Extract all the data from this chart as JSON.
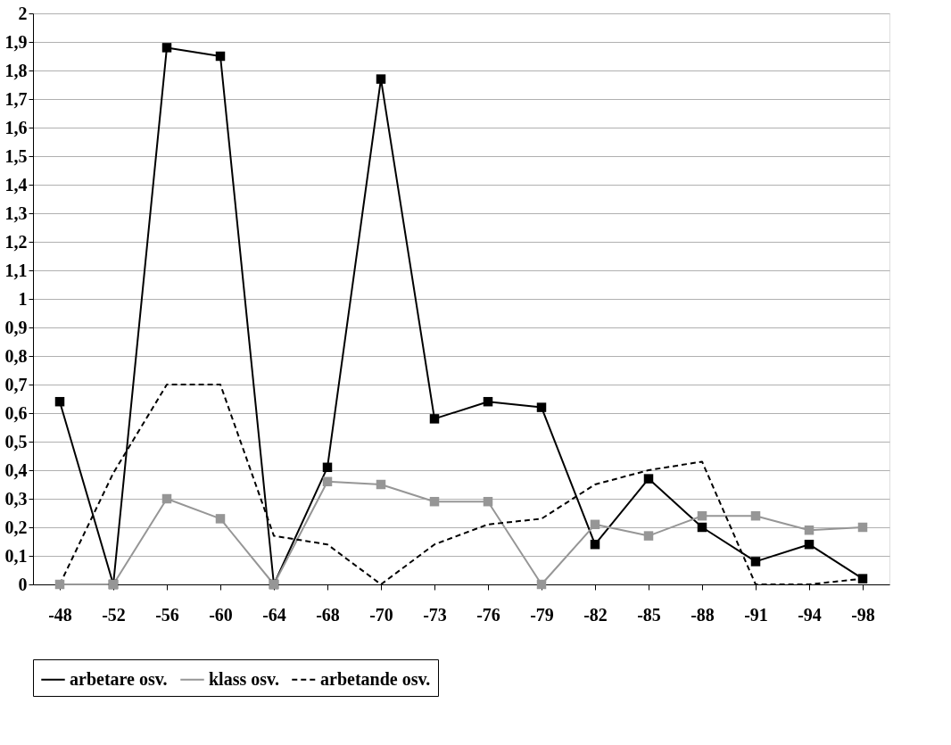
{
  "chart_data": {
    "type": "line",
    "categories": [
      "-48",
      "-52",
      "-56",
      "-60",
      "-64",
      "-68",
      "-70",
      "-73",
      "-76",
      "-79",
      "-82",
      "-85",
      "-88",
      "-91",
      "-94",
      "-98"
    ],
    "series": [
      {
        "name": "arbetare osv.",
        "color": "#000000",
        "marker": "square",
        "line_style": "solid",
        "values": [
          0.64,
          0,
          1.88,
          1.85,
          0,
          0.41,
          1.77,
          0.58,
          0.64,
          0.62,
          0.14,
          0.37,
          0.2,
          0.08,
          0.14,
          0.02
        ]
      },
      {
        "name": "klass osv.",
        "color": "#969696",
        "marker": "square",
        "line_style": "solid",
        "values": [
          0,
          0,
          0.3,
          0.23,
          0,
          0.36,
          0.35,
          0.29,
          0.29,
          0,
          0.21,
          0.17,
          0.24,
          0.24,
          0.19,
          0.2
        ]
      },
      {
        "name": "arbetande osv.",
        "color": "#000000",
        "marker": "none",
        "line_style": "dashed",
        "values": [
          0,
          0.39,
          0.7,
          0.7,
          0.17,
          0.14,
          0,
          0.14,
          0.21,
          0.23,
          0.35,
          0.4,
          0.43,
          0,
          0,
          0.02
        ]
      }
    ],
    "ylim": [
      0,
      2
    ],
    "yticks": [
      0,
      {
        "value": 0.1,
        "label": "0,1"
      },
      {
        "value": 0.2,
        "label": "0,2"
      },
      {
        "value": 0.3,
        "label": "0,3"
      },
      {
        "value": 0.4,
        "label": "0,4"
      },
      {
        "value": 0.5,
        "label": "0,5"
      },
      {
        "value": 0.6,
        "label": "0,6"
      },
      {
        "value": 0.7,
        "label": "0,7"
      },
      {
        "value": 0.8,
        "label": "0,8"
      },
      {
        "value": 0.9,
        "label": "0,9"
      },
      1,
      {
        "value": 1.1,
        "label": "1,1"
      },
      {
        "value": 1.2,
        "label": "1,2"
      },
      {
        "value": 1.3,
        "label": "1,3"
      },
      {
        "value": 1.4,
        "label": "1,4"
      },
      {
        "value": 1.5,
        "label": "1,5"
      },
      {
        "value": 1.6,
        "label": "1,6"
      },
      {
        "value": 1.7,
        "label": "1,7"
      },
      {
        "value": 1.8,
        "label": "1,8"
      },
      {
        "value": 1.9,
        "label": "1,9"
      },
      2
    ],
    "grid": "y",
    "legend": "bottom"
  }
}
